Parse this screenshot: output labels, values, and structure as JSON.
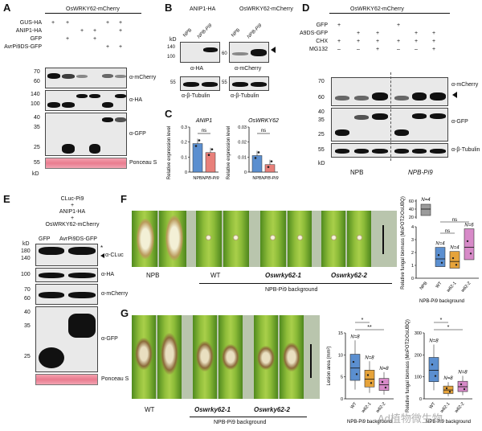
{
  "panels": {
    "A": "A",
    "B": "B",
    "C": "C",
    "D": "D",
    "E": "E",
    "F": "F",
    "G": "G"
  },
  "a": {
    "title": "OsWRKY62-mCherry",
    "rows": [
      {
        "label": "GUS-HA",
        "marks": [
          "+",
          "+",
          "",
          "",
          "+",
          "+"
        ]
      },
      {
        "label": "ANIP1-HA",
        "marks": [
          "",
          "",
          "+",
          "+",
          "",
          "+"
        ]
      },
      {
        "label": "GFP",
        "marks": [
          "",
          "+",
          "",
          "+",
          "",
          ""
        ]
      },
      {
        "label": "AvrPi9DS-GFP",
        "marks": [
          "",
          "",
          "",
          "",
          "+",
          "+"
        ]
      }
    ],
    "kd": "kD",
    "markers": [
      "70",
      "60",
      "140",
      "100",
      "40",
      "35",
      "25",
      "55"
    ],
    "blot_labels": [
      "α-mCherry",
      "α-HA",
      "α-GFP",
      "Ponceau S"
    ]
  },
  "b": {
    "left_title": "ANIP1-HA",
    "right_title": "OsWRKY62-mCherry",
    "kd": "kD",
    "lanes_left": [
      "NPB",
      "NPB-Pi9"
    ],
    "lanes_right": [
      "NPB",
      "NPB-Pi9"
    ],
    "markers_left": [
      "140",
      "100",
      "55"
    ],
    "markers_right": [
      "60",
      "55"
    ],
    "labels": [
      "α-HA",
      "α-β-Tubulin",
      "α-mCherry",
      "α-β-Tubulin"
    ]
  },
  "c": {
    "charts": [
      {
        "title": "ANIP1",
        "ylabel": "Relative expression level",
        "ylim": [
          0,
          0.3
        ],
        "ticks": [
          "0",
          "0.1",
          "0.2",
          "0.3"
        ],
        "categories": [
          "NPB",
          "NPB-Pi9"
        ],
        "values": [
          0.19,
          0.13
        ],
        "ns": "ns"
      },
      {
        "title": "OsWRKY62",
        "ylabel": "Relative expression level",
        "ylim": [
          0,
          0.03
        ],
        "ticks": [
          "0",
          "0.01",
          "0.02",
          "0.03"
        ],
        "categories": [
          "NPB",
          "NPB-Pi9"
        ],
        "values": [
          0.011,
          0.005
        ],
        "ns": "ns"
      }
    ],
    "colors": {
      "npb": "#5b8fd0",
      "pi9": "#e8807a"
    }
  },
  "chart_data": [
    {
      "type": "bar",
      "panel": "C",
      "title": "ANIP1",
      "ylabel": "Relative expression level",
      "categories": [
        "NPB",
        "NPB-Pi9"
      ],
      "values": [
        0.19,
        0.13
      ],
      "ylim": [
        0,
        0.3
      ]
    },
    {
      "type": "bar",
      "panel": "C",
      "title": "OsWRKY62",
      "ylabel": "Relative expression level",
      "categories": [
        "NPB",
        "NPB-Pi9"
      ],
      "values": [
        0.011,
        0.005
      ],
      "ylim": [
        0,
        0.03
      ]
    },
    {
      "type": "box",
      "panel": "F",
      "ylabel": "Relative fungal biomass (MoPOT2/OsUBQ)",
      "categories": [
        "NPB",
        "WT",
        "w62-1",
        "w62-2"
      ],
      "medians": [
        50,
        1.5,
        1.3,
        2.4
      ],
      "n": [
        "N=4",
        "N=4",
        "N=4",
        "N=6"
      ]
    },
    {
      "type": "box",
      "panel": "G",
      "ylabel": "Lesion area (mm²)",
      "categories": [
        "WT",
        "w62-1",
        "w62-2"
      ],
      "medians": [
        7,
        4.5,
        3.2
      ],
      "n": [
        "N=8",
        "N=8",
        "N=8"
      ]
    },
    {
      "type": "box",
      "panel": "G",
      "ylabel": "Relative fungal biomass (MoPOT2/OsUBQ)",
      "categories": [
        "WT",
        "w62-1",
        "w62-2"
      ],
      "medians": [
        130,
        40,
        55
      ],
      "n": [
        "N=8",
        "N=8",
        "N=8"
      ]
    }
  ],
  "d": {
    "title": "OsWRKY62-mCherry",
    "rows": [
      {
        "label": "GFP",
        "marks": [
          "+",
          "",
          "",
          "+",
          "",
          ""
        ]
      },
      {
        "label": "A9DS-GFP",
        "marks": [
          "",
          "+",
          "+",
          "",
          "+",
          "+"
        ]
      },
      {
        "label": "CHX",
        "marks": [
          "+",
          "+",
          "+",
          "+",
          "+",
          "+"
        ]
      },
      {
        "label": "MG132",
        "marks": [
          "–",
          "–",
          "+",
          "–",
          "–",
          "+"
        ]
      }
    ],
    "kd": "kD",
    "markers": [
      "70",
      "60",
      "40",
      "35",
      "25",
      "55"
    ],
    "labels": [
      "α-mCherry",
      "α-GFP",
      "α-β-Tubulin"
    ],
    "groups": [
      "NPB",
      "NPB-Pi9"
    ]
  },
  "e": {
    "header": [
      "CLuc-Pi9",
      "+",
      "ANIP1-HA",
      "+",
      "OsWRKY62-mCherry"
    ],
    "lanes": [
      "GFP",
      "AvrPi9DS-GFP"
    ],
    "kd": "kD",
    "markers": [
      "180",
      "140",
      "100",
      "70",
      "60",
      "40",
      "35",
      "25"
    ],
    "labels": [
      "α-CLuc",
      "α-HA",
      "α-mCherry",
      "α-GFP",
      "Ponceau S"
    ],
    "star": "*"
  },
  "f": {
    "labels": [
      "NPB",
      "WT",
      "Oswrky62-1",
      "Oswrky62-2"
    ],
    "background": "NPB-Pi9 background",
    "box": {
      "ylabel": "Relative fungal biomass (MoPOT2/OsUBQ)",
      "ticks_top": [
        "60",
        "40",
        "20"
      ],
      "ticks_bottom": [
        "4",
        "3",
        "2",
        "1",
        "0"
      ],
      "categories": [
        "NPB",
        "WT",
        "w62-1",
        "w62-2"
      ],
      "n": [
        "N=4",
        "N=4",
        "N=4",
        "N=6"
      ],
      "ns": [
        "ns",
        "ns"
      ],
      "xlabel": "NPB-Pi9 background"
    }
  },
  "g": {
    "labels": [
      "WT",
      "Oswrky62-1",
      "Oswrky62-2"
    ],
    "background": "NPB-Pi9 background",
    "lesion": {
      "ylabel": "Lesion area (mm²)",
      "ticks": [
        "15",
        "10",
        "5",
        "0"
      ],
      "categories": [
        "WT",
        "w62-1",
        "w62-2"
      ],
      "n": [
        "N=8",
        "N=8",
        "N=8"
      ],
      "sig": [
        "**",
        "*"
      ],
      "xlabel": "NPB-Pi9 background"
    },
    "biomass": {
      "ylabel": "Relative fungal biomass (MoPOT2/OsUBQ)",
      "ticks": [
        "300",
        "200",
        "100",
        "0"
      ],
      "categories": [
        "WT",
        "w62-1",
        "w62-2"
      ],
      "n": [
        "N=8",
        "N=8",
        "N=8"
      ],
      "sig": [
        "*",
        "*"
      ],
      "xlabel": "NPB-Pi9 background"
    },
    "watermark": "Ad植物微生物"
  }
}
